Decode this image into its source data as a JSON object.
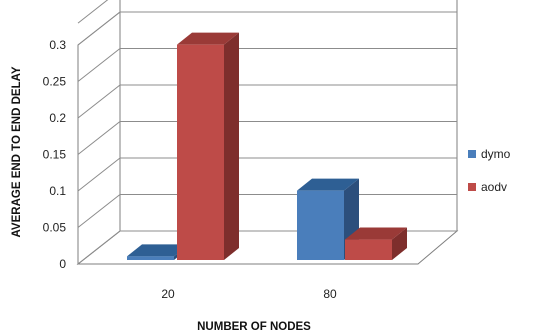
{
  "chart_data": {
    "type": "bar",
    "title": "",
    "xlabel": "NUMBER OF NODES",
    "ylabel": "AVERAGE END TO END DELAY",
    "categories": [
      "20",
      "80"
    ],
    "series": [
      {
        "name": "dymo",
        "values": [
          0.005,
          0.095
        ]
      },
      {
        "name": "aodv",
        "values": [
          0.295,
          0.028
        ]
      }
    ],
    "ylim": [
      0,
      0.3
    ],
    "y_ticks": [
      "0",
      "0.05",
      "0.1",
      "0.15",
      "0.2",
      "0.25",
      "0.3"
    ],
    "grid": true,
    "legend_position": "right",
    "style": "3d-clustered-column",
    "colors": {
      "dymo_front": "#4a7ebb",
      "dymo_side": "#2c4f7c",
      "dymo_top": "#2e5f94",
      "aodv_front": "#be4b48",
      "aodv_side": "#7e2e2c",
      "aodv_top": "#9a3a37"
    }
  }
}
